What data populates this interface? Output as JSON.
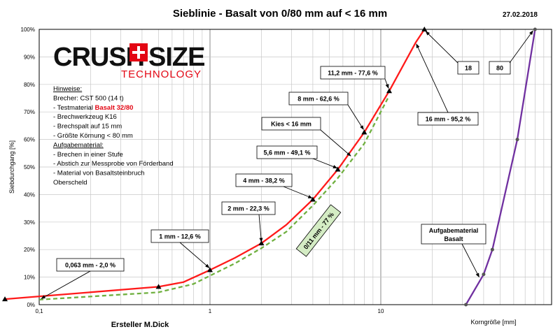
{
  "chart_data": {
    "type": "line",
    "title": "Sieblinie - Basalt von 0/80 mm auf < 16 mm",
    "date": "27.02.2018",
    "xlabel": "Korngröße [mm]",
    "ylabel": "Siebdurchgang [%]",
    "author": "Ersteller M.Dick",
    "x_scale": "log",
    "xlim": [
      0.1,
      100
    ],
    "ylim": [
      0,
      100
    ],
    "x_ticks": [
      {
        "value": 0.1,
        "label": "0,1"
      },
      {
        "value": 1,
        "label": "1"
      },
      {
        "value": 10,
        "label": "10"
      }
    ],
    "y_ticks": [
      {
        "value": 0,
        "label": "0%"
      },
      {
        "value": 10,
        "label": "10%"
      },
      {
        "value": 20,
        "label": "20%"
      },
      {
        "value": 30,
        "label": "30%"
      },
      {
        "value": 40,
        "label": "40%"
      },
      {
        "value": 50,
        "label": "50%"
      },
      {
        "value": 60,
        "label": "60%"
      },
      {
        "value": 70,
        "label": "70%"
      },
      {
        "value": 80,
        "label": "80%"
      },
      {
        "value": 90,
        "label": "90%"
      },
      {
        "value": 100,
        "label": "100%"
      }
    ],
    "grid": true,
    "series": [
      {
        "name": "",
        "color": "#ff1a1a",
        "style": "solid",
        "x": [
          0.063,
          0.5,
          0.7,
          1,
          1.4,
          2,
          2.8,
          4,
          5.6,
          8,
          11.2,
          16,
          18
        ],
        "y": [
          2.0,
          6.5,
          8.2,
          12.6,
          17.0,
          22.3,
          29.0,
          38.2,
          49.1,
          62.6,
          77.6,
          95.2,
          100
        ]
      },
      {
        "name": "",
        "color": "#70b040",
        "style": "dashed",
        "x": [
          0.1,
          0.5,
          0.8,
          1,
          1.4,
          2,
          2.8,
          4,
          5.6,
          8,
          11
        ],
        "y": [
          1.8,
          4.5,
          7.5,
          10.5,
          15.0,
          20.5,
          26.5,
          36.0,
          46.0,
          58.5,
          75.0
        ]
      },
      {
        "name": "",
        "color": "#7030a0",
        "style": "solid",
        "x": [
          31.5,
          40,
          45,
          63,
          80
        ],
        "y": [
          0,
          11,
          20,
          60,
          100
        ]
      }
    ],
    "annotations": [
      {
        "text": "0,063 mm - 2,0 %"
      },
      {
        "text": "1 mm - 12,6 %"
      },
      {
        "text": "2 mm - 22,3 %"
      },
      {
        "text": "4 mm - 38,2 %"
      },
      {
        "text": "5,6 mm - 49,1 %"
      },
      {
        "text": "Kies < 16 mm"
      },
      {
        "text": "8 mm - 62,6 %"
      },
      {
        "text": "11,2 mm - 77,6 %"
      },
      {
        "text": "16 mm - 95,2 %"
      },
      {
        "text": "18"
      },
      {
        "text": "80"
      },
      {
        "text": "Aufgabematerial"
      },
      {
        "text": "Basalt"
      },
      {
        "text": "0/11 mm - 77 %"
      }
    ]
  },
  "logo": {
    "text_a": "CRUSH",
    "text_b": "SIZE",
    "subtitle": "TECHNOLOGY"
  },
  "notes": [
    {
      "text": "Hinweise:",
      "style": "underline"
    },
    {
      "text": "Brecher: CST 500 (14 t)"
    },
    {
      "prefix": "- Testmaterial ",
      "highlight": "Basalt 32/80"
    },
    {
      "text": "- Brechwerkzeug K16"
    },
    {
      "text": "- Brechspalt auf 15 mm"
    },
    {
      "text": "- Größte Körnung < 80 mm"
    },
    {
      "text": "Aufgabematerial:",
      "style": "underline"
    },
    {
      "text": "- Brechen in einer Stufe"
    },
    {
      "text": "- Abstich zur Messprobe von Förderband"
    },
    {
      "text": "- Material von Basaltsteinbruch"
    },
    {
      "text": "Oberscheld"
    }
  ],
  "colors": {
    "red_curve": "#ff1a1a",
    "green_curve": "#70b040",
    "purple_curve": "#7030a0",
    "logo_red": "#e30613",
    "highlight_red": "#e30613"
  }
}
